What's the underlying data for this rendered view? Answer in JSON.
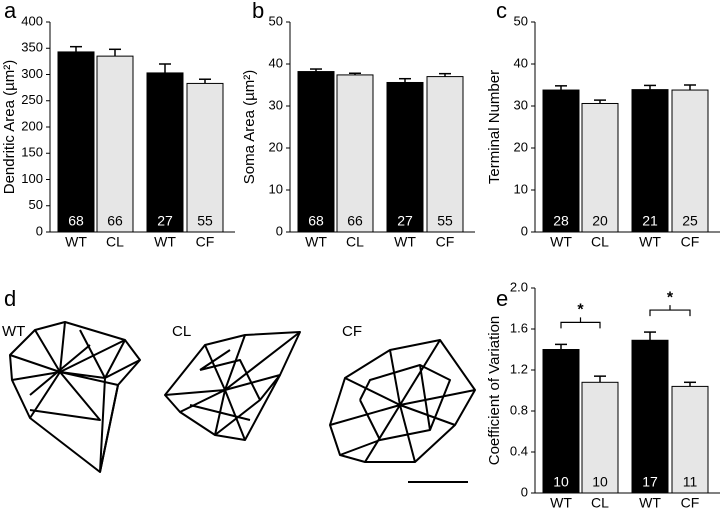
{
  "chart_data": [
    {
      "type": "bar",
      "panel_label": "a",
      "ylabel": "Dendritic Area (µm²)",
      "categories": [
        "WT",
        "CL",
        "WT",
        "CF"
      ],
      "values": [
        343,
        335,
        303,
        283
      ],
      "errors": [
        10,
        13,
        17,
        8
      ],
      "n": [
        68,
        66,
        27,
        55
      ],
      "colors": [
        "#000000",
        "#e6e6e6",
        "#000000",
        "#e6e6e6"
      ],
      "ylim": [
        0,
        400
      ],
      "yticks": [
        0,
        50,
        100,
        150,
        200,
        250,
        300,
        350,
        400
      ]
    },
    {
      "type": "bar",
      "panel_label": "b",
      "ylabel": "Soma Area (µm²)",
      "categories": [
        "WT",
        "CL",
        "WT",
        "CF"
      ],
      "values": [
        38.2,
        37.4,
        35.6,
        37.0
      ],
      "errors": [
        0.6,
        0.4,
        0.9,
        0.7
      ],
      "n": [
        68,
        66,
        27,
        55
      ],
      "colors": [
        "#000000",
        "#e6e6e6",
        "#000000",
        "#e6e6e6"
      ],
      "ylim": [
        0,
        50
      ],
      "yticks": [
        0,
        10,
        20,
        30,
        40,
        50
      ]
    },
    {
      "type": "bar",
      "panel_label": "c",
      "ylabel": "Terminal Number",
      "categories": [
        "WT",
        "CL",
        "WT",
        "CF"
      ],
      "values": [
        33.8,
        30.6,
        33.9,
        33.8
      ],
      "errors": [
        1.0,
        0.8,
        1.0,
        1.2
      ],
      "n": [
        28,
        20,
        21,
        25
      ],
      "colors": [
        "#000000",
        "#e6e6e6",
        "#000000",
        "#e6e6e6"
      ],
      "ylim": [
        0,
        50
      ],
      "yticks": [
        0,
        10,
        20,
        30,
        40,
        50
      ]
    },
    {
      "type": "bar",
      "panel_label": "e",
      "ylabel": "Coefficient of Variation",
      "categories": [
        "WT",
        "CL",
        "WT",
        "CF"
      ],
      "values": [
        1.4,
        1.08,
        1.49,
        1.04
      ],
      "errors": [
        0.05,
        0.06,
        0.08,
        0.04
      ],
      "n": [
        10,
        10,
        17,
        11
      ],
      "colors": [
        "#000000",
        "#e6e6e6",
        "#000000",
        "#e6e6e6"
      ],
      "ylim": [
        0,
        2
      ],
      "yticks": [
        0,
        0.4,
        0.8,
        1.2,
        1.6,
        {
          "value": 2,
          "label": "2.0"
        }
      ],
      "annotations": [
        "*",
        "*"
      ]
    }
  ],
  "panel_d": {
    "panel_label": "d",
    "labels": [
      "WT",
      "CL",
      "CF"
    ]
  }
}
